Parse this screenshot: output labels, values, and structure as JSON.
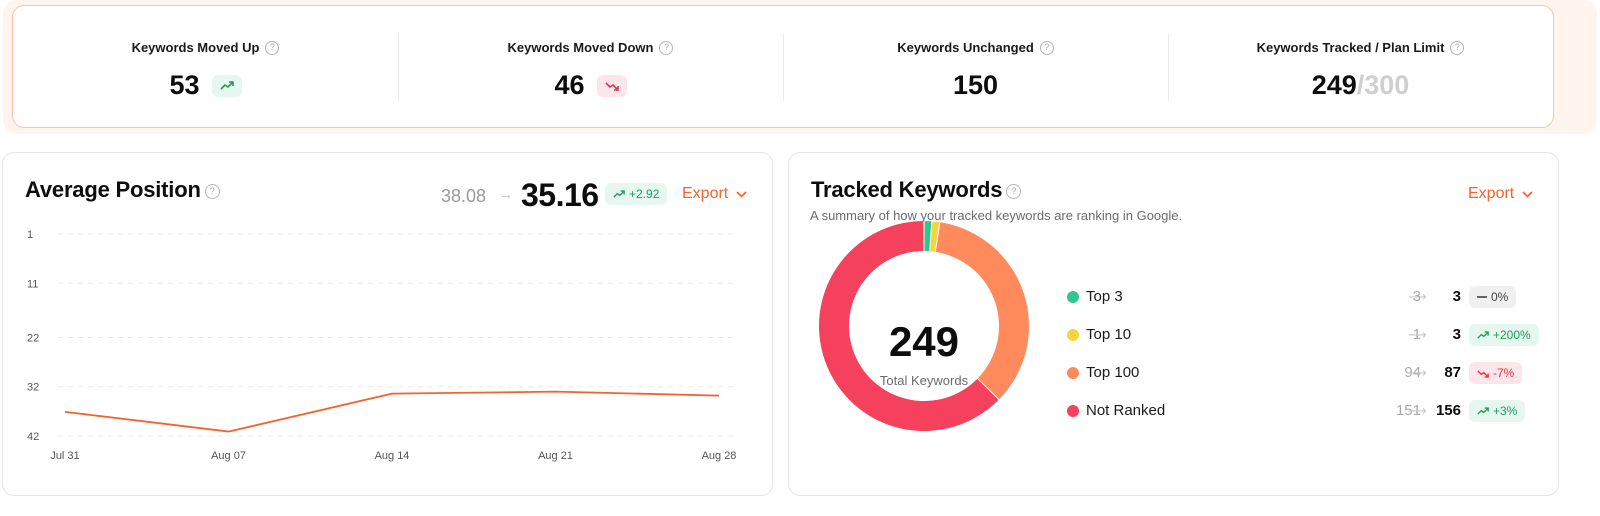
{
  "colors": {
    "accent": "#f4622e",
    "up": "#1f9d5c",
    "down": "#e0324f",
    "top3": "#2ec88f",
    "top10": "#f5d43c",
    "top100": "#ff8a5c",
    "not_ranked": "#f5405e"
  },
  "stats": [
    {
      "label": "Keywords Moved Up",
      "value": "53",
      "trend": "up",
      "icon": "trend-up-icon"
    },
    {
      "label": "Keywords Moved Down",
      "value": "46",
      "trend": "down",
      "icon": "trend-down-icon"
    },
    {
      "label": "Keywords Unchanged",
      "value": "150"
    },
    {
      "label": "Keywords Tracked / Plan Limit",
      "value": "249",
      "limit": "/300"
    }
  ],
  "average_position": {
    "title": "Average Position",
    "previous": "38.08",
    "current": "35.16",
    "change": "+2.92",
    "export_label": "Export"
  },
  "tracked_keywords": {
    "title": "Tracked Keywords",
    "subtitle": "A summary of how your tracked keywords are ranking in Google.",
    "export_label": "Export",
    "total": "249",
    "total_label": "Total Keywords",
    "rows": [
      {
        "name": "Top 3",
        "prev": "3",
        "curr": "3",
        "change": "0%",
        "trend": "flat"
      },
      {
        "name": "Top 10",
        "prev": "1",
        "curr": "3",
        "change": "+200%",
        "trend": "up"
      },
      {
        "name": "Top 100",
        "prev": "94",
        "curr": "87",
        "change": "-7%",
        "trend": "down"
      },
      {
        "name": "Not Ranked",
        "prev": "151",
        "curr": "156",
        "change": "+3%",
        "trend": "up"
      }
    ]
  },
  "chart_data": [
    {
      "type": "line",
      "title": "Average Position",
      "x": [
        "Jul 31",
        "Aug 07",
        "Aug 14",
        "Aug 21",
        "Aug 28"
      ],
      "y_ticks": [
        "1",
        "11",
        "22",
        "32",
        "42"
      ],
      "ylim": [
        1,
        42
      ],
      "y_inverted": true,
      "grid": true,
      "series": [
        {
          "values": [
            37.1,
            41.1,
            33.4,
            33.0,
            33.8
          ]
        }
      ]
    },
    {
      "type": "pie",
      "title": "Tracked Keywords",
      "donut": true,
      "categories": [
        "Top 3",
        "Top 10",
        "Top 100",
        "Not Ranked"
      ],
      "values": [
        3,
        3,
        87,
        156
      ]
    }
  ]
}
